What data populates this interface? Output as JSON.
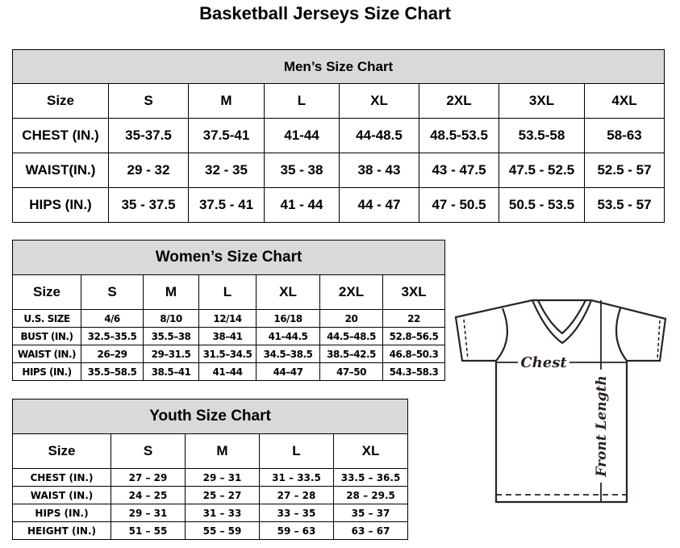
{
  "title": "Basketball Jerseys Size Chart",
  "men": {
    "heading": "Men’s Size Chart",
    "header": [
      "Size",
      "S",
      "M",
      "L",
      "XL",
      "2XL",
      "3XL",
      "4XL"
    ],
    "rows": [
      [
        "CHEST (IN.)",
        "35-37.5",
        "37.5-41",
        "41-44",
        "44-48.5",
        "48.5-53.5",
        "53.5-58",
        "58-63"
      ],
      [
        "WAIST(IN.)",
        "29 - 32",
        "32 - 35",
        "35 - 38",
        "38 - 43",
        "43 - 47.5",
        "47.5 - 52.5",
        "52.5 - 57"
      ],
      [
        "HIPS (IN.)",
        "35 - 37.5",
        "37.5 - 41",
        "41 - 44",
        "44 - 47",
        "47 - 50.5",
        "50.5 - 53.5",
        "53.5 - 57"
      ]
    ]
  },
  "women": {
    "heading": "Women’s Size Chart",
    "header": [
      "Size",
      "S",
      "M",
      "L",
      "XL",
      "2XL",
      "3XL"
    ],
    "rows": [
      [
        "U.S. SIZE",
        "4/6",
        "8/10",
        "12/14",
        "16/18",
        "20",
        "22"
      ],
      [
        "BUST (IN.)",
        "32.5–35.5",
        "35.5–38",
        "38–41",
        "41–44.5",
        "44.5–48.5",
        "52.8–56.5"
      ],
      [
        "WAIST (IN.)",
        "26–29",
        "29–31.5",
        "31.5–34.5",
        "34.5–38.5",
        "38.5–42.5",
        "46.8–50.3"
      ],
      [
        "HIPS (IN.)",
        "35.5–58.5",
        "38.5–41",
        "41–44",
        "44–47",
        "47–50",
        "54.3–58.3"
      ]
    ]
  },
  "youth": {
    "heading": "Youth Size Chart",
    "header": [
      "Size",
      "S",
      "M",
      "L",
      "XL"
    ],
    "rows": [
      [
        "CHEST (IN.)",
        "27 – 29",
        "29 – 31",
        "31 – 33.5",
        "33.5 – 36.5"
      ],
      [
        "WAIST (IN.)",
        "24 – 25",
        "25 – 27",
        "27 – 28",
        "28 – 29.5"
      ],
      [
        "HIPS (IN.)",
        "29 – 31",
        "31 – 33",
        "33 – 35",
        "35 – 37"
      ],
      [
        "HEIGHT (IN.)",
        "51 – 55",
        "55 – 59",
        "59 – 63",
        "63 – 67"
      ]
    ]
  },
  "diagram": {
    "chest_label": "Chest",
    "length_label": "Front Length",
    "line_color": "#2b2220"
  }
}
